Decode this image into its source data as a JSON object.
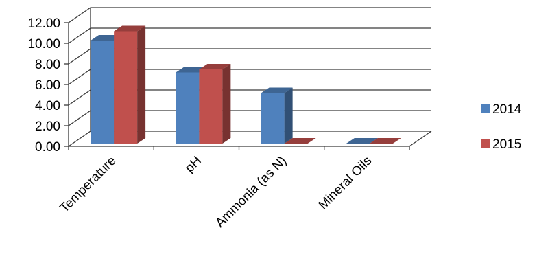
{
  "chart_data": {
    "type": "bar",
    "style": "3d-clustered-column",
    "categories": [
      "Temperature",
      "pH",
      "Ammonia (as N)",
      "Mineral Oils"
    ],
    "series": [
      {
        "name": "2014",
        "values": [
          10.0,
          6.9,
          4.9,
          0.0
        ],
        "color": "#4F81BD"
      },
      {
        "name": "2015",
        "values": [
          10.9,
          7.2,
          0.0,
          0.0
        ],
        "color": "#C0504D"
      }
    ],
    "y_ticks": [
      "0.00",
      "2.00",
      "4.00",
      "6.00",
      "8.00",
      "10.00",
      "12.00"
    ],
    "ylim": [
      0,
      12
    ],
    "grid": true,
    "legend_position": "right"
  }
}
